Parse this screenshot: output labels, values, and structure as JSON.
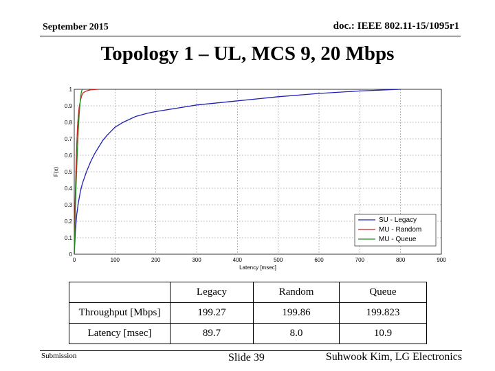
{
  "header": {
    "date": "September 2015",
    "doc": "doc.: IEEE 802.11-15/1095r1"
  },
  "title": "Topology 1 – UL, MCS 9, 20 Mbps",
  "chart_data": {
    "type": "line",
    "xlabel": "Latency [msec]",
    "ylabel": "F(x)",
    "xlim": [
      0,
      900
    ],
    "ylim": [
      0,
      1
    ],
    "xticks": [
      0,
      100,
      200,
      300,
      400,
      500,
      600,
      700,
      800,
      900
    ],
    "yticks": [
      0,
      0.1,
      0.2,
      0.3,
      0.4,
      0.5,
      0.6,
      0.7,
      0.8,
      0.9,
      1
    ],
    "grid": true,
    "legend_position": "bottom-right",
    "series": [
      {
        "name": "SU - Legacy",
        "color": "#1f1fb4",
        "x": [
          0,
          3,
          6,
          10,
          15,
          20,
          30,
          40,
          50,
          60,
          70,
          80,
          100,
          120,
          150,
          180,
          200,
          250,
          300,
          400,
          500,
          600,
          700,
          800
        ],
        "y": [
          0,
          0.15,
          0.24,
          0.31,
          0.38,
          0.43,
          0.5,
          0.56,
          0.61,
          0.65,
          0.69,
          0.72,
          0.77,
          0.8,
          0.835,
          0.855,
          0.865,
          0.885,
          0.905,
          0.93,
          0.955,
          0.975,
          0.99,
          1.0
        ]
      },
      {
        "name": "MU - Random",
        "color": "#cc1f1f",
        "x": [
          0,
          2,
          4,
          6,
          8,
          10,
          12,
          15,
          18,
          22,
          30,
          40,
          60
        ],
        "y": [
          0,
          0.3,
          0.5,
          0.66,
          0.77,
          0.84,
          0.89,
          0.93,
          0.96,
          0.98,
          0.99,
          0.997,
          1.0
        ]
      },
      {
        "name": "MU - Queue",
        "color": "#1f8a1f",
        "x": [
          0,
          2,
          4,
          6,
          8,
          10,
          12,
          14,
          16,
          18,
          20
        ],
        "y": [
          0,
          0.2,
          0.38,
          0.52,
          0.64,
          0.75,
          0.84,
          0.91,
          0.96,
          0.99,
          1.0
        ]
      }
    ]
  },
  "table": {
    "headers": [
      "",
      "Legacy",
      "Random",
      "Queue"
    ],
    "rows": [
      [
        "Throughput [Mbps]",
        "199.27",
        "199.86",
        "199.823"
      ],
      [
        "Latency [msec]",
        "89.7",
        "8.0",
        "10.9"
      ]
    ]
  },
  "footer": {
    "submission": "Submission",
    "slide": "Slide 39",
    "author": "Suhwook Kim, LG Electronics"
  }
}
